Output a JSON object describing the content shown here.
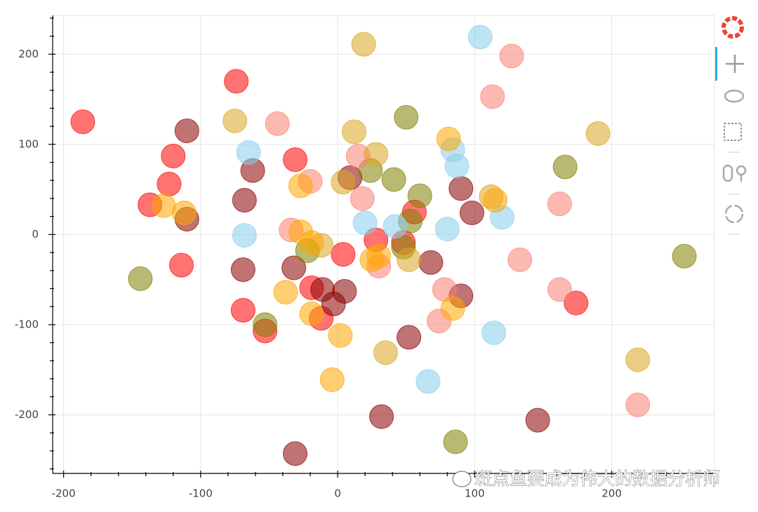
{
  "chart_data": {
    "type": "scatter",
    "xlim": [
      -208,
      275
    ],
    "ylim": [
      -265,
      243
    ],
    "xticks": [
      -200,
      -100,
      0,
      100,
      200
    ],
    "yticks": [
      -200,
      -100,
      0,
      100,
      200
    ],
    "xminorticks": [
      -180,
      -160,
      -140,
      -120,
      -80,
      -60,
      -40,
      -20,
      20,
      40,
      60,
      80,
      120,
      140,
      160,
      180,
      220,
      240,
      260
    ],
    "yminorticks": [
      -260,
      -240,
      -220,
      -180,
      -160,
      -140,
      -120,
      -80,
      -60,
      -40,
      -20,
      20,
      40,
      60,
      80,
      120,
      140,
      160,
      180,
      220,
      240
    ],
    "grid": true,
    "annotation": "斑点鱼要成为伟大的数据分析师",
    "series": [
      {
        "color": "#ff0000",
        "x": [
          -186,
          -74,
          -120,
          -123,
          -137,
          -114,
          -31,
          -69,
          -53,
          4,
          -19,
          -12,
          28,
          56,
          48,
          174
        ],
        "y": [
          125,
          170,
          87,
          56,
          33,
          -34,
          83,
          -84,
          -107,
          -22,
          -59,
          -93,
          -6,
          25,
          -9,
          -76
        ]
      },
      {
        "color": "#8b0000",
        "x": [
          -110,
          -110,
          -62,
          -68,
          -69,
          -32,
          -11,
          5,
          -3,
          9,
          68,
          90,
          98,
          90,
          52,
          32,
          -31,
          146
        ],
        "y": [
          115,
          17,
          71,
          38,
          -39,
          -37,
          -61,
          -63,
          -77,
          63,
          -31,
          51,
          24,
          -68,
          -114,
          -202,
          -243,
          -206
        ]
      },
      {
        "color": "#808000",
        "x": [
          -144,
          -53,
          -22,
          50,
          41,
          24,
          60,
          53,
          48,
          166,
          253,
          86
        ],
        "y": [
          -49,
          -100,
          -18,
          130,
          61,
          71,
          43,
          15,
          -14,
          75,
          -24,
          -230
        ]
      },
      {
        "color": "#87ceeb",
        "x": [
          104,
          -65,
          -68,
          20,
          42,
          80,
          84,
          87,
          120,
          114,
          66
        ],
        "y": [
          219,
          91,
          -1,
          13,
          9,
          6,
          94,
          76,
          19,
          -109,
          -163
        ]
      },
      {
        "color": "#fa8072",
        "x": [
          127,
          113,
          -44,
          -20,
          -34,
          15,
          18,
          30,
          78,
          74,
          133,
          162,
          162,
          219
        ],
        "y": [
          198,
          153,
          123,
          59,
          5,
          87,
          40,
          -35,
          -61,
          -96,
          -28,
          -61,
          34,
          -189
        ]
      },
      {
        "color": "#daa520",
        "x": [
          19,
          -75,
          12,
          28,
          4,
          -12,
          35,
          52,
          190,
          219,
          112
        ],
        "y": [
          211,
          126,
          114,
          89,
          58,
          -12,
          -131,
          -28,
          112,
          -139,
          42
        ]
      },
      {
        "color": "#ffa500",
        "x": [
          -127,
          -112,
          -27,
          -27,
          -19,
          -38,
          -19,
          2,
          -4,
          25,
          30,
          81,
          84,
          115
        ],
        "y": [
          32,
          24,
          54,
          3,
          -9,
          -64,
          -88,
          -112,
          -161,
          -28,
          -24,
          106,
          -82,
          38
        ]
      }
    ]
  }
}
